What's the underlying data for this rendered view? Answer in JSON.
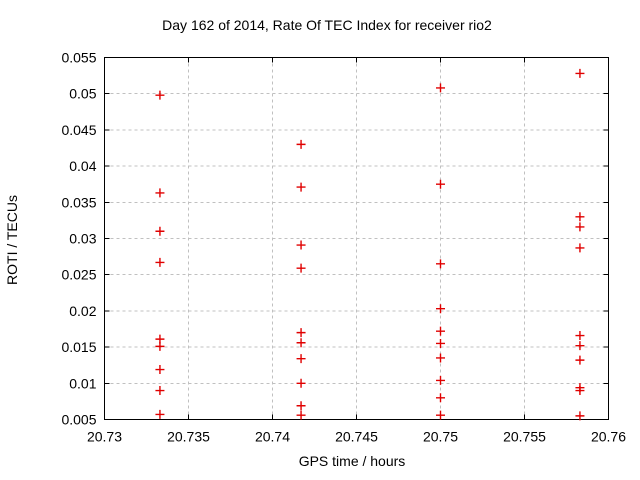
{
  "chart_data": {
    "type": "scatter",
    "title": "Day 162 of 2014, Rate Of TEC Index for receiver rio2",
    "xlabel": "GPS time / hours",
    "ylabel": "ROTI / TECUs",
    "xlim": [
      20.73,
      20.76
    ],
    "ylim": [
      0.005,
      0.055
    ],
    "xtick_labels": [
      "20.73",
      "20.735",
      "20.74",
      "20.745",
      "20.75",
      "20.755",
      "20.76"
    ],
    "ytick_labels": [
      "0.005",
      "0.01",
      "0.015",
      "0.02",
      "0.025",
      "0.03",
      "0.035",
      "0.04",
      "0.045",
      "0.05",
      "0.055"
    ],
    "grid": true,
    "legend": "none",
    "marker": "plus",
    "marker_color": "#e00000",
    "series": [
      {
        "name": "ROTI",
        "clusters": [
          {
            "x": 20.7333,
            "y_values": [
              0.0498,
              0.0363,
              0.031,
              0.0267,
              0.0161,
              0.0151,
              0.0119,
              0.009,
              0.0057
            ]
          },
          {
            "x": 20.7417,
            "y_values": [
              0.043,
              0.0371,
              0.0291,
              0.0259,
              0.017,
              0.0156,
              0.0134,
              0.01,
              0.0069,
              0.0056
            ]
          },
          {
            "x": 20.75,
            "y_values": [
              0.0508,
              0.0375,
              0.0265,
              0.0203,
              0.0172,
              0.0155,
              0.0135,
              0.0104,
              0.008,
              0.0056
            ]
          },
          {
            "x": 20.7583,
            "y_values": [
              0.0528,
              0.033,
              0.0316,
              0.0287,
              0.0166,
              0.0152,
              0.0132,
              0.0094,
              0.009,
              0.0055
            ]
          }
        ]
      }
    ]
  },
  "colors": {
    "background": "#ffffff",
    "axis": "#000000",
    "grid": "#c0c0c0",
    "text": "#000000"
  }
}
